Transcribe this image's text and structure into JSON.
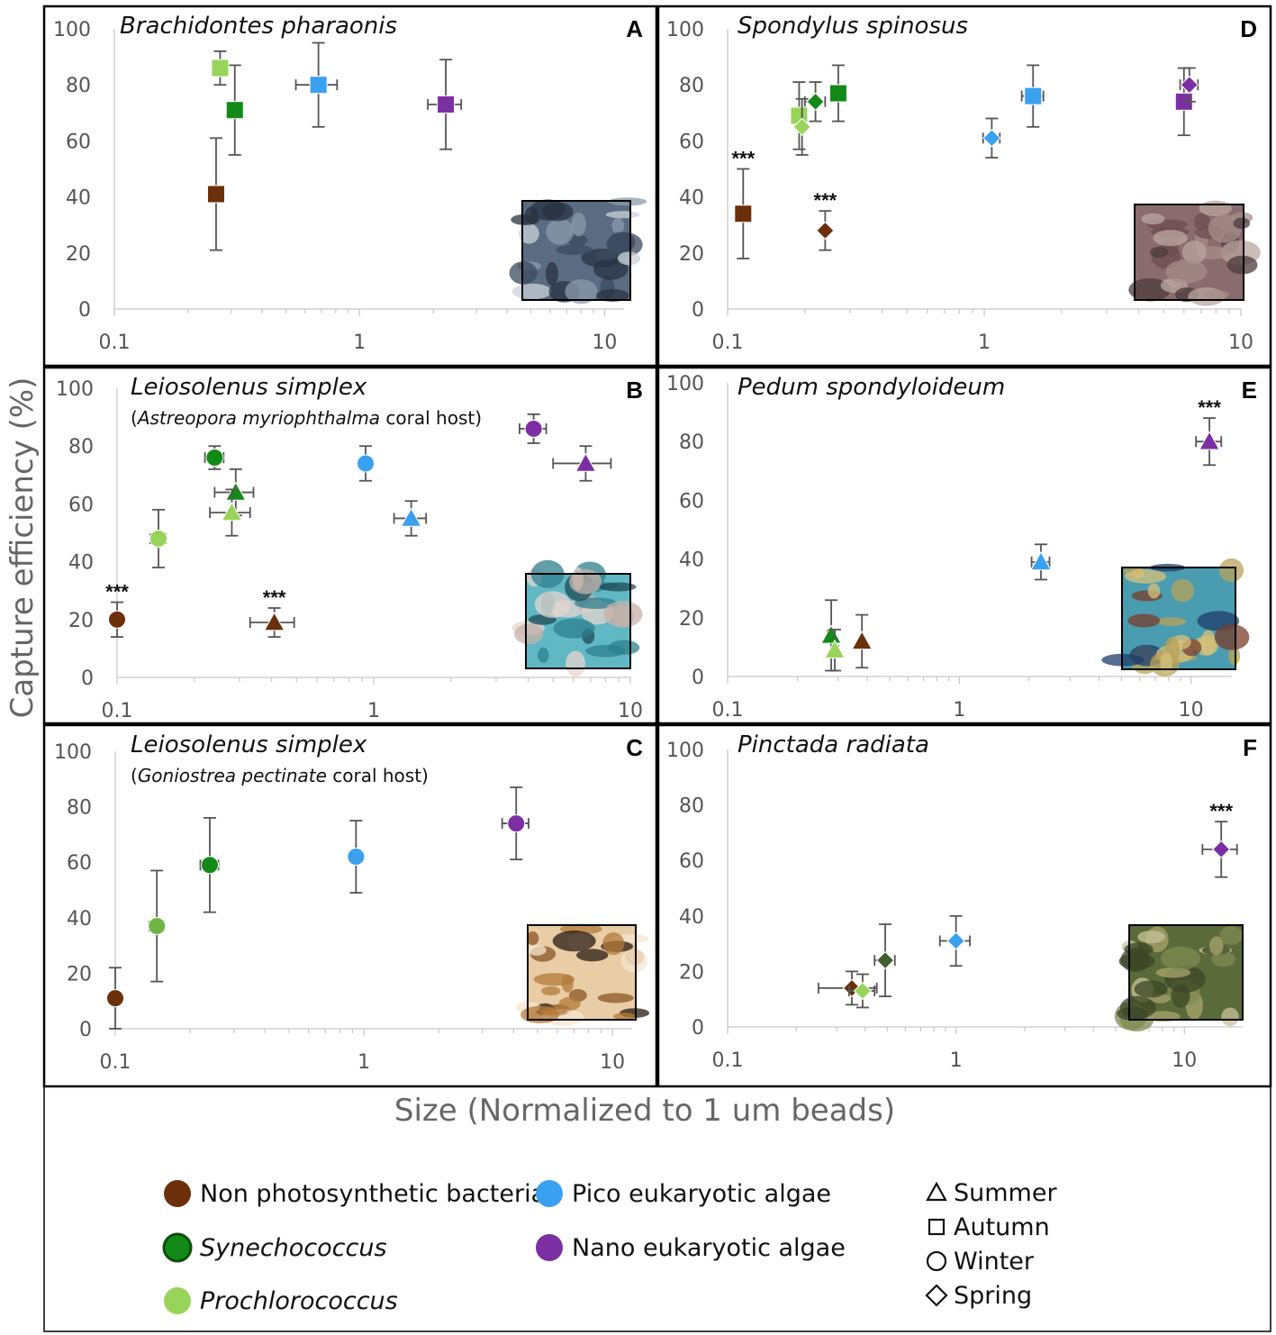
{
  "figure": {
    "ylabel": "Capture efficiency (%)",
    "xlabel": "Size (Normalized to 1 um beads)"
  },
  "colors": {
    "bacteria": "#6b2f0a",
    "syn": "#138a17",
    "syn_dark": "#3f5f2c",
    "pro": "#98d45a",
    "pro_mid": "#6fb544",
    "pico": "#3aa0f0",
    "nano": "#7b2fa3"
  },
  "legend": {
    "groups": [
      {
        "label": "Non photosynthetic bacteria",
        "color": "bacteria",
        "italic": false
      },
      {
        "label": "Synechococcus",
        "color": "syn",
        "italic": true
      },
      {
        "label": "Prochlorococcus",
        "color": "pro",
        "italic": true
      },
      {
        "label": "Pico eukaryotic algae",
        "color": "pico",
        "italic": false
      },
      {
        "label": "Nano eukaryotic algae",
        "color": "nano",
        "italic": false
      }
    ],
    "seasons": [
      {
        "label": "Summer",
        "shape": "triangle"
      },
      {
        "label": "Autumn",
        "shape": "square"
      },
      {
        "label": "Winter",
        "shape": "circle"
      },
      {
        "label": "Spring",
        "shape": "diamond"
      }
    ]
  },
  "chart_data": [
    {
      "type": "scatter",
      "letter": "A",
      "title": "Brachidontes pharaonis",
      "xscale": "log",
      "xlim": [
        0.1,
        12
      ],
      "ylim": [
        0,
        100
      ],
      "xticks": [
        "0.1",
        "1",
        "10"
      ],
      "yticks": [
        "0",
        "20",
        "40",
        "60",
        "80",
        "100"
      ],
      "image": "mussel-photo",
      "points": [
        {
          "x": 0.26,
          "y": 41,
          "yerr": 20,
          "xerr": 0,
          "color": "bacteria",
          "shape": "square"
        },
        {
          "x": 0.31,
          "y": 71,
          "yerr": 16,
          "xerr": 0,
          "color": "syn",
          "shape": "square"
        },
        {
          "x": 0.27,
          "y": 86,
          "yerr": 6,
          "xerr": 0,
          "color": "pro",
          "shape": "square"
        },
        {
          "x": 0.68,
          "y": 80,
          "yerr": 15,
          "xerr": 0.13,
          "color": "pico",
          "shape": "square"
        },
        {
          "x": 2.25,
          "y": 73,
          "yerr": 16,
          "xerr": 0.35,
          "color": "nano",
          "shape": "square"
        }
      ]
    },
    {
      "type": "scatter",
      "letter": "B",
      "title": "Leiosolenus simplex",
      "subtitle_it": "Astreopora myriophthalma",
      "subtitle_rest": " coral host)",
      "xscale": "log",
      "xlim": [
        0.1,
        10
      ],
      "ylim": [
        0,
        100
      ],
      "xticks": [
        "0.1",
        "1",
        "10"
      ],
      "yticks": [
        "0",
        "20",
        "40",
        "60",
        "80",
        "100"
      ],
      "image": "coral-blue-photo",
      "points": [
        {
          "x": 0.1,
          "y": 20,
          "yerr": 6,
          "xerr": 0,
          "color": "bacteria",
          "shape": "circle",
          "sig": "***"
        },
        {
          "x": 0.41,
          "y": 19,
          "yerr": 5,
          "xerr": 0.08,
          "color": "bacteria",
          "shape": "triangle",
          "sig": "***"
        },
        {
          "x": 0.24,
          "y": 76,
          "yerr": 4,
          "xerr": 0.02,
          "color": "syn",
          "shape": "circle"
        },
        {
          "x": 0.29,
          "y": 64,
          "yerr": 8,
          "xerr": 0.05,
          "color": "syn",
          "shape": "triangle"
        },
        {
          "x": 0.145,
          "y": 48,
          "yerr": 10,
          "xerr": 0.01,
          "color": "pro",
          "shape": "circle"
        },
        {
          "x": 0.28,
          "y": 57,
          "yerr": 8,
          "xerr": 0.05,
          "color": "pro",
          "shape": "triangle"
        },
        {
          "x": 0.93,
          "y": 74,
          "yerr": 6,
          "xerr": 0,
          "color": "pico",
          "shape": "circle"
        },
        {
          "x": 1.4,
          "y": 55,
          "yerr": 6,
          "xerr": 0.2,
          "color": "pico",
          "shape": "triangle"
        },
        {
          "x": 4.2,
          "y": 86,
          "yerr": 5,
          "xerr": 0.5,
          "color": "nano",
          "shape": "circle"
        },
        {
          "x": 6.7,
          "y": 74,
          "yerr": 6,
          "xerr": 1.7,
          "color": "nano",
          "shape": "triangle"
        }
      ]
    },
    {
      "type": "scatter",
      "letter": "C",
      "title": "Leiosolenus simplex",
      "subtitle_it": "Goniostrea pectinate",
      "subtitle_rest": " coral host)",
      "xscale": "log",
      "xlim": [
        0.1,
        12
      ],
      "ylim": [
        0,
        100
      ],
      "xticks": [
        "0.1",
        "1",
        "10"
      ],
      "yticks": [
        "0",
        "20",
        "40",
        "60",
        "80",
        "100"
      ],
      "image": "coral-brown-photo",
      "points": [
        {
          "x": 0.1,
          "y": 11,
          "yerr": 11,
          "xerr": 0,
          "color": "bacteria",
          "shape": "circle"
        },
        {
          "x": 0.24,
          "y": 59,
          "yerr": 17,
          "xerr": 0.02,
          "color": "syn",
          "shape": "circle"
        },
        {
          "x": 0.147,
          "y": 37,
          "yerr": 20,
          "xerr": 0.01,
          "color": "pro_mid",
          "shape": "circle"
        },
        {
          "x": 0.93,
          "y": 62,
          "yerr": 13,
          "xerr": 0,
          "color": "pico",
          "shape": "circle"
        },
        {
          "x": 4.1,
          "y": 74,
          "yerr": 13,
          "xerr": 0.5,
          "color": "nano",
          "shape": "circle"
        }
      ]
    },
    {
      "type": "scatter",
      "letter": "D",
      "title": "Spondylus spinosus",
      "xscale": "log",
      "xlim": [
        0.1,
        10
      ],
      "ylim": [
        0,
        100
      ],
      "xticks": [
        "0.1",
        "1",
        "10"
      ],
      "yticks": [
        "0",
        "20",
        "40",
        "60",
        "80",
        "100"
      ],
      "image": "oyster-photo",
      "points": [
        {
          "x": 0.115,
          "y": 34,
          "yerr": 16,
          "xerr": 0,
          "color": "bacteria",
          "shape": "square",
          "sig": "***"
        },
        {
          "x": 0.24,
          "y": 28,
          "yerr": 7,
          "xerr": 0,
          "color": "bacteria",
          "shape": "diamond",
          "sig": "***"
        },
        {
          "x": 0.27,
          "y": 77,
          "yerr": 10,
          "xerr": 0,
          "color": "syn",
          "shape": "square"
        },
        {
          "x": 0.22,
          "y": 74,
          "yerr": 7,
          "xerr": 0.02,
          "color": "syn",
          "shape": "diamond"
        },
        {
          "x": 0.19,
          "y": 69,
          "yerr": 12,
          "xerr": 0,
          "color": "pro",
          "shape": "square"
        },
        {
          "x": 0.195,
          "y": 65,
          "yerr": 10,
          "xerr": 0,
          "color": "pro",
          "shape": "diamond"
        },
        {
          "x": 1.55,
          "y": 76,
          "yerr": 11,
          "xerr": 0.15,
          "color": "pico",
          "shape": "square"
        },
        {
          "x": 1.07,
          "y": 61,
          "yerr": 7,
          "xerr": 0.08,
          "color": "pico",
          "shape": "diamond"
        },
        {
          "x": 6.0,
          "y": 74,
          "yerr": 12,
          "xerr": 0.25,
          "color": "nano",
          "shape": "square"
        },
        {
          "x": 6.3,
          "y": 80,
          "yerr": 6,
          "xerr": 0.5,
          "color": "nano",
          "shape": "diamond"
        }
      ]
    },
    {
      "type": "scatter",
      "letter": "E",
      "title": "Pedum spondyloideum",
      "xscale": "log",
      "xlim": [
        0.1,
        15
      ],
      "ylim": [
        0,
        100
      ],
      "xticks": [
        "0.1",
        "1",
        "10"
      ],
      "yticks": [
        "0",
        "20",
        "40",
        "60",
        "80",
        "100"
      ],
      "image": "scallop-photo",
      "points": [
        {
          "x": 0.38,
          "y": 12,
          "yerr": 9,
          "xerr": 0,
          "color": "bacteria",
          "shape": "triangle"
        },
        {
          "x": 0.28,
          "y": 14,
          "yerr": 12,
          "xerr": 0.01,
          "color": "syn",
          "shape": "triangle"
        },
        {
          "x": 0.29,
          "y": 9,
          "yerr": 7,
          "xerr": 0.01,
          "color": "pro",
          "shape": "triangle"
        },
        {
          "x": 2.25,
          "y": 39,
          "yerr": 6,
          "xerr": 0.2,
          "color": "pico",
          "shape": "triangle"
        },
        {
          "x": 12.0,
          "y": 80,
          "yerr": 8,
          "xerr": 1.5,
          "color": "nano",
          "shape": "triangle",
          "sig": "***"
        }
      ]
    },
    {
      "type": "scatter",
      "letter": "F",
      "title": "Pinctada radiata",
      "xscale": "log",
      "xlim": [
        0.1,
        18
      ],
      "ylim": [
        0,
        100
      ],
      "xticks": [
        "0.1",
        "1",
        "10"
      ],
      "yticks": [
        "0",
        "20",
        "40",
        "60",
        "80",
        "100"
      ],
      "image": "pearl-oyster-photo",
      "points": [
        {
          "x": 0.35,
          "y": 14,
          "yerr": 6,
          "xerr": 0.1,
          "color": "bacteria",
          "shape": "diamond"
        },
        {
          "x": 0.49,
          "y": 24,
          "yerr": 13,
          "xerr": 0.05,
          "color": "syn_dark",
          "shape": "diamond"
        },
        {
          "x": 0.39,
          "y": 13,
          "yerr": 6,
          "xerr": 0.05,
          "color": "pro",
          "shape": "diamond"
        },
        {
          "x": 1.0,
          "y": 31,
          "yerr": 9,
          "xerr": 0.15,
          "color": "pico",
          "shape": "diamond"
        },
        {
          "x": 14.5,
          "y": 64,
          "yerr": 10,
          "xerr": 2.5,
          "color": "nano",
          "shape": "diamond",
          "sig": "***"
        }
      ]
    }
  ]
}
